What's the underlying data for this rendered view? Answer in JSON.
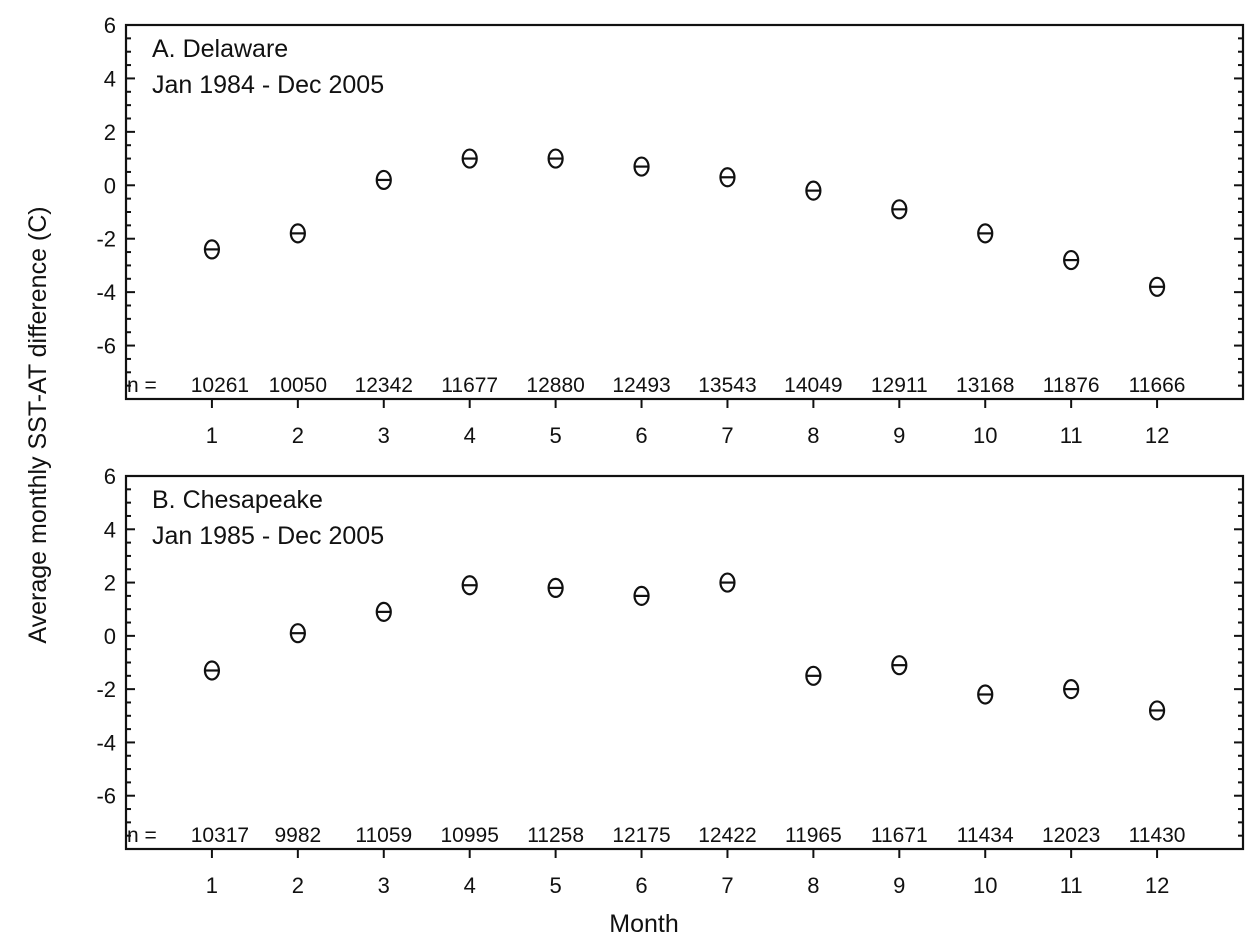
{
  "chart_data": [
    {
      "type": "scatter",
      "title": "A. Delaware",
      "subtitle": "Jan 1984 - Dec 2005",
      "xlabel": "",
      "ylabel": "Average monthly SST-AT difference (C)",
      "x": [
        1,
        2,
        3,
        4,
        5,
        6,
        7,
        8,
        9,
        10,
        11,
        12
      ],
      "xlim": [
        0,
        13
      ],
      "ylim": [
        -8,
        6
      ],
      "yticks": [
        -6,
        -4,
        -2,
        0,
        2,
        4,
        6
      ],
      "xtick_labels": [
        "1",
        "2",
        "3",
        "4",
        "5",
        "6",
        "7",
        "8",
        "9",
        "10",
        "11",
        "12"
      ],
      "series": [
        {
          "values": [
            -2.4,
            -1.8,
            0.2,
            1.0,
            1.0,
            0.7,
            0.3,
            -0.2,
            -0.9,
            -1.8,
            -2.8,
            -3.8
          ]
        }
      ],
      "n_prefix": "n =",
      "n_values": [
        "10261",
        "10050",
        "12342",
        "11677",
        "12880",
        "12493",
        "13543",
        "14049",
        "12911",
        "13168",
        "11876",
        "11666"
      ],
      "grid": false,
      "legend": "none"
    },
    {
      "type": "scatter",
      "title": "B. Chesapeake",
      "subtitle": "Jan 1985 - Dec 2005",
      "xlabel": "Month",
      "ylabel": "Average monthly SST-AT difference (C)",
      "x": [
        1,
        2,
        3,
        4,
        5,
        6,
        7,
        8,
        9,
        10,
        11,
        12
      ],
      "xlim": [
        0,
        13
      ],
      "ylim": [
        -8,
        6
      ],
      "yticks": [
        -6,
        -4,
        -2,
        0,
        2,
        4,
        6
      ],
      "xtick_labels": [
        "1",
        "2",
        "3",
        "4",
        "5",
        "6",
        "7",
        "8",
        "9",
        "10",
        "11",
        "12"
      ],
      "series": [
        {
          "values": [
            -1.3,
            0.1,
            0.9,
            1.9,
            1.8,
            1.5,
            2.0,
            -1.5,
            -1.1,
            -2.2,
            -2.0,
            -2.8
          ]
        }
      ],
      "n_prefix": "n =",
      "n_values": [
        "10317",
        "9982",
        "11059",
        "10995",
        "11258",
        "12175",
        "12422",
        "11965",
        "11671",
        "11434",
        "12023",
        "11430"
      ],
      "grid": false,
      "legend": "none"
    }
  ],
  "labels": {
    "ylabel": "Average monthly SST-AT difference (C)",
    "xlabel": "Month"
  }
}
